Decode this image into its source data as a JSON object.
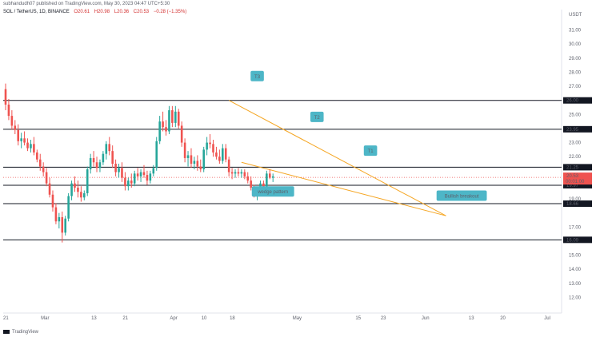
{
  "header": {
    "published": "subhandudh07 published on TradingView.com, May 30, 2023 04:47 UTC+5:30",
    "symbol": "SOL / TetherUS, 1D, BINANCE",
    "ohlc": [
      "O20.61",
      "H20.98",
      "L20.36",
      "C20.53",
      "−0.28 (−1.35%)"
    ]
  },
  "footer": {
    "brand": "TradingView"
  },
  "chart_data": {
    "type": "candlestick",
    "currency": "USDT",
    "ylim": [
      11.0,
      32.0
    ],
    "y_ticks": [
      {
        "v": 31,
        "label": "31.00"
      },
      {
        "v": 30,
        "label": "30.00"
      },
      {
        "v": 29,
        "label": "29.00"
      },
      {
        "v": 28,
        "label": "28.00"
      },
      {
        "v": 27,
        "label": "27.00"
      },
      {
        "v": 25,
        "label": "25.00"
      },
      {
        "v": 24,
        "label": "24.00"
      },
      {
        "v": 23,
        "label": "23.00"
      },
      {
        "v": 22,
        "label": "22.00"
      },
      {
        "v": 19,
        "label": "19.00"
      },
      {
        "v": 17,
        "label": "17.00"
      },
      {
        "v": 15,
        "label": "15.00"
      },
      {
        "v": 14,
        "label": "14.00"
      },
      {
        "v": 13,
        "label": "13.00"
      },
      {
        "v": 12,
        "label": "12.00"
      }
    ],
    "x_ticks": [
      {
        "i": 0,
        "label": "21"
      },
      {
        "i": 12,
        "label": "Mar"
      },
      {
        "i": 28,
        "label": "13"
      },
      {
        "i": 38,
        "label": "21"
      },
      {
        "i": 53,
        "label": "Apr"
      },
      {
        "i": 63,
        "label": "10"
      },
      {
        "i": 72,
        "label": "18"
      },
      {
        "i": 92,
        "label": "May"
      },
      {
        "i": 112,
        "label": "15"
      },
      {
        "i": 120,
        "label": "23"
      },
      {
        "i": 133,
        "label": "Jun"
      },
      {
        "i": 148,
        "label": "13"
      },
      {
        "i": 158,
        "label": "20"
      },
      {
        "i": 172,
        "label": "Jul"
      }
    ],
    "horizontal_levels": [
      {
        "value": 26.0,
        "label": "26.00"
      },
      {
        "value": 23.95,
        "label": "23.95"
      },
      {
        "value": 21.25,
        "label": "21.25"
      },
      {
        "value": 19.97,
        "label": "19.97"
      },
      {
        "value": 18.66,
        "label": "18.66"
      },
      {
        "value": 16.09,
        "label": "16.09"
      }
    ],
    "last_price": {
      "value": 20.53,
      "label": "20.53",
      "countdown": "00:01:00"
    },
    "top_label": "USDT",
    "trendlines": [
      {
        "name": "upper",
        "from": [
          71,
          26.0
        ],
        "to": [
          140,
          17.8
        ],
        "color": "#f5a623"
      },
      {
        "name": "lower",
        "from": [
          75,
          21.6
        ],
        "to": [
          140,
          17.8
        ],
        "color": "#f5a623"
      }
    ],
    "annotations": [
      {
        "text": "T3",
        "i": 80,
        "v": 27.7
      },
      {
        "text": "T2",
        "i": 99,
        "v": 24.8
      },
      {
        "text": "T1",
        "i": 116,
        "v": 22.4
      },
      {
        "text": "wedge pattern",
        "i": 85,
        "v": 19.5
      },
      {
        "text": "Bullish breakout",
        "i": 145,
        "v": 19.2
      }
    ],
    "candles": [
      [
        26.8,
        27.2,
        25.3,
        25.7
      ],
      [
        25.7,
        26.1,
        24.6,
        24.9
      ],
      [
        24.9,
        25.3,
        23.9,
        24.2
      ],
      [
        24.2,
        24.6,
        23.6,
        23.9
      ],
      [
        23.9,
        24.3,
        22.8,
        23.1
      ],
      [
        23.1,
        23.7,
        22.6,
        23.3
      ],
      [
        23.3,
        23.8,
        22.8,
        23.0
      ],
      [
        23.0,
        23.3,
        22.4,
        22.6
      ],
      [
        22.6,
        23.2,
        22.3,
        22.9
      ],
      [
        22.9,
        23.4,
        22.1,
        22.3
      ],
      [
        22.3,
        22.5,
        21.6,
        21.8
      ],
      [
        21.8,
        22.2,
        21.0,
        21.3
      ],
      [
        21.3,
        21.6,
        20.6,
        20.9
      ],
      [
        20.9,
        21.2,
        19.9,
        20.1
      ],
      [
        20.1,
        20.5,
        19.1,
        19.3
      ],
      [
        19.3,
        19.6,
        18.1,
        18.4
      ],
      [
        18.4,
        18.7,
        17.2,
        17.4
      ],
      [
        17.4,
        18.0,
        16.9,
        17.7
      ],
      [
        17.7,
        18.1,
        15.9,
        16.6
      ],
      [
        16.6,
        17.8,
        16.4,
        17.6
      ],
      [
        17.6,
        19.4,
        17.4,
        19.2
      ],
      [
        19.2,
        20.3,
        18.9,
        20.1
      ],
      [
        20.1,
        20.6,
        19.5,
        19.8
      ],
      [
        19.8,
        20.3,
        19.1,
        19.5
      ],
      [
        19.5,
        19.9,
        18.8,
        19.1
      ],
      [
        19.1,
        19.6,
        18.9,
        19.4
      ],
      [
        19.4,
        21.3,
        19.2,
        21.1
      ],
      [
        21.1,
        22.2,
        20.8,
        21.9
      ],
      [
        21.9,
        22.4,
        21.3,
        21.6
      ],
      [
        21.6,
        22.0,
        20.9,
        21.2
      ],
      [
        21.2,
        21.8,
        20.9,
        21.6
      ],
      [
        21.6,
        22.4,
        21.4,
        22.2
      ],
      [
        22.2,
        23.1,
        21.8,
        22.9
      ],
      [
        22.9,
        23.4,
        22.1,
        22.4
      ],
      [
        22.4,
        22.8,
        21.2,
        21.5
      ],
      [
        21.5,
        21.8,
        20.6,
        20.9
      ],
      [
        20.9,
        21.5,
        20.5,
        21.2
      ],
      [
        21.2,
        21.6,
        20.2,
        20.5
      ],
      [
        20.5,
        20.9,
        19.6,
        19.9
      ],
      [
        19.9,
        20.5,
        19.6,
        20.3
      ],
      [
        20.3,
        20.8,
        19.8,
        20.1
      ],
      [
        20.1,
        21.0,
        19.9,
        20.8
      ],
      [
        20.8,
        21.2,
        20.3,
        20.6
      ],
      [
        20.6,
        21.1,
        20.2,
        20.9
      ],
      [
        20.9,
        21.4,
        20.5,
        20.7
      ],
      [
        20.7,
        21.0,
        20.0,
        20.3
      ],
      [
        20.3,
        21.0,
        20.1,
        20.8
      ],
      [
        20.8,
        21.4,
        20.6,
        21.2
      ],
      [
        21.2,
        23.4,
        21.0,
        23.1
      ],
      [
        23.1,
        24.9,
        22.9,
        24.5
      ],
      [
        24.5,
        25.2,
        23.8,
        24.1
      ],
      [
        24.1,
        24.6,
        23.5,
        23.8
      ],
      [
        23.8,
        25.6,
        23.6,
        25.3
      ],
      [
        25.3,
        25.6,
        24.1,
        24.4
      ],
      [
        24.4,
        25.6,
        24.1,
        25.2
      ],
      [
        25.2,
        25.4,
        24.0,
        24.2
      ],
      [
        24.2,
        24.5,
        22.7,
        23.0
      ],
      [
        23.0,
        23.3,
        21.6,
        21.9
      ],
      [
        21.9,
        22.4,
        21.3,
        22.1
      ],
      [
        22.1,
        22.6,
        21.2,
        21.5
      ],
      [
        21.5,
        22.0,
        21.1,
        21.7
      ],
      [
        21.7,
        22.1,
        21.0,
        21.3
      ],
      [
        21.3,
        21.8,
        20.9,
        21.1
      ],
      [
        21.1,
        22.7,
        20.9,
        22.5
      ],
      [
        22.5,
        23.4,
        22.1,
        23.0
      ],
      [
        23.0,
        23.6,
        22.6,
        22.9
      ],
      [
        22.9,
        23.2,
        22.0,
        22.3
      ],
      [
        22.3,
        22.7,
        21.8,
        22.0
      ],
      [
        22.0,
        22.5,
        21.5,
        21.7
      ],
      [
        21.7,
        22.9,
        21.5,
        22.6
      ],
      [
        22.6,
        22.9,
        21.6,
        21.8
      ],
      [
        21.8,
        22.0,
        20.6,
        20.9
      ],
      [
        20.9,
        21.2,
        20.4,
        20.8
      ],
      [
        20.8,
        21.1,
        20.5,
        20.9
      ],
      [
        20.9,
        21.2,
        20.6,
        20.8
      ],
      [
        20.8,
        21.1,
        20.5,
        20.9
      ],
      [
        20.9,
        21.1,
        20.4,
        20.6
      ],
      [
        20.6,
        20.9,
        20.1,
        20.3
      ],
      [
        20.3,
        20.6,
        19.6,
        19.8
      ],
      [
        19.8,
        20.0,
        19.1,
        19.3
      ],
      [
        19.3,
        19.6,
        18.9,
        19.4
      ],
      [
        19.4,
        20.3,
        19.2,
        20.1
      ],
      [
        20.1,
        20.3,
        19.5,
        19.6
      ],
      [
        19.6,
        21.0,
        19.4,
        20.8
      ],
      [
        20.8,
        21.1,
        20.4,
        20.5
      ],
      [
        20.5,
        20.8,
        20.2,
        20.6
      ]
    ]
  }
}
